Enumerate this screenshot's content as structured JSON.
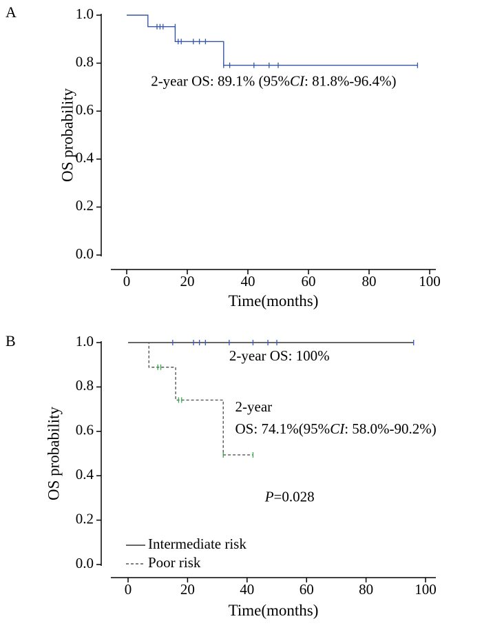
{
  "chart_data": [
    {
      "panel_label": "A",
      "type": "line",
      "step": true,
      "xlabel": "Time(months)",
      "ylabel": "OS probability",
      "xlim": [
        0,
        100
      ],
      "ylim": [
        0,
        1.0
      ],
      "xticks": [
        0,
        20,
        40,
        60,
        80,
        100
      ],
      "yticks": [
        "0.0",
        "0.2",
        "0.4",
        "0.6",
        "0.8",
        "1.0"
      ],
      "grid": false,
      "series": [
        {
          "color": "#3355aa",
          "dash": "solid",
          "x": [
            0,
            7,
            16,
            32,
            96
          ],
          "y": [
            1.0,
            0.952,
            0.89,
            0.791,
            0.791
          ],
          "censor_x": [
            10,
            11,
            12,
            16,
            17,
            18,
            22,
            24,
            26,
            32,
            34,
            42,
            47,
            50,
            96
          ],
          "censor_y": [
            0.952,
            0.952,
            0.952,
            0.952,
            0.89,
            0.89,
            0.89,
            0.89,
            0.89,
            0.791,
            0.791,
            0.791,
            0.791,
            0.791,
            0.791
          ]
        }
      ],
      "annotations": [
        {
          "text_parts": [
            "2-year OS: 89.1% (95%",
            "CI",
            ": 81.8%-96.4%)"
          ],
          "x": 8,
          "y": 0.72
        }
      ]
    },
    {
      "panel_label": "B",
      "type": "line",
      "step": true,
      "xlabel": "Time(months)",
      "ylabel": "OS probability",
      "xlim": [
        0,
        100
      ],
      "ylim": [
        0,
        1.0
      ],
      "xticks": [
        0,
        20,
        40,
        60,
        80,
        100
      ],
      "yticks": [
        "0.0",
        "0.2",
        "0.4",
        "0.6",
        "0.8",
        "1.0"
      ],
      "grid": false,
      "legend_position": "bottom-left",
      "series": [
        {
          "name": "Intermediate risk",
          "color": "#333333",
          "marker_color": "#3355cc",
          "dash": "solid",
          "x": [
            0,
            96
          ],
          "y": [
            1.0,
            1.0
          ],
          "censor_x": [
            15,
            22,
            24,
            26,
            34,
            42,
            47,
            50,
            96
          ],
          "censor_y": [
            1.0,
            1.0,
            1.0,
            1.0,
            1.0,
            1.0,
            1.0,
            1.0,
            1.0
          ]
        },
        {
          "name": "Poor risk",
          "color": "#555555",
          "marker_color": "#33aa44",
          "dash": "dashed",
          "x": [
            0,
            7,
            16,
            32,
            42
          ],
          "y": [
            1.0,
            0.889,
            0.741,
            0.494,
            0.494
          ],
          "censor_x": [
            10,
            11,
            17,
            18,
            32,
            42
          ],
          "censor_y": [
            0.889,
            0.889,
            0.741,
            0.741,
            0.494,
            0.494
          ]
        }
      ],
      "annotations": [
        {
          "text_parts": [
            "2-year OS: 100%"
          ],
          "x": 34,
          "y": 0.935
        },
        {
          "text_parts": [
            "2-year"
          ],
          "x": 36,
          "y": 0.705
        },
        {
          "text_parts": [
            "OS: 74.1%(95%",
            "CI",
            ": 58.0%-90.2%)"
          ],
          "x": 36,
          "y": 0.605
        },
        {
          "text_parts": [
            "P",
            "=0.028"
          ],
          "x": 46,
          "y": 0.3
        }
      ]
    }
  ]
}
